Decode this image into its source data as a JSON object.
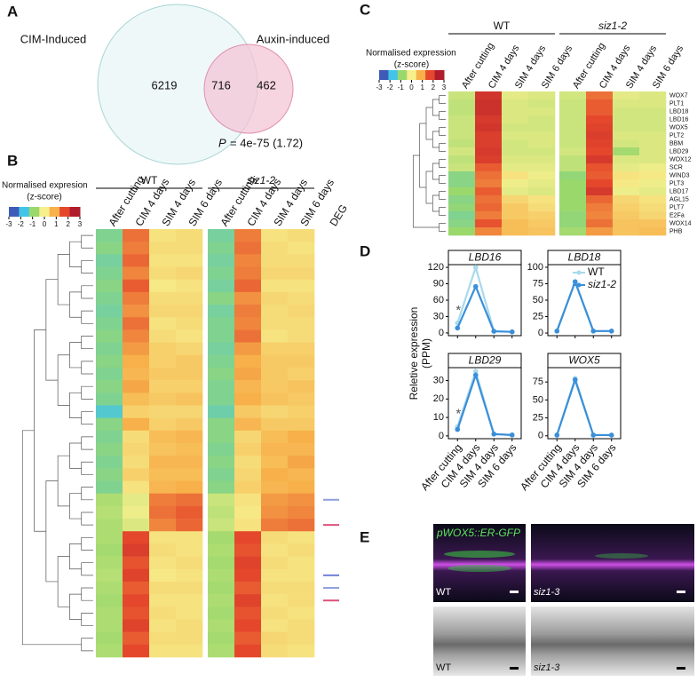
{
  "panel_labels": [
    "A",
    "B",
    "C",
    "D",
    "E"
  ],
  "venn": {
    "left_label": "CIM-Induced",
    "right_label": "Auxin-induced",
    "left_only": 6219,
    "overlap": 716,
    "right_only": 462,
    "p_symbol": "P",
    "p_text": "= 4e-75 (1.72)"
  },
  "colormap": [
    "#3f5bb8",
    "#41c4e8",
    "#9bd86c",
    "#f6ef8c",
    "#f7b04a",
    "#e5472c",
    "#b01c2c"
  ],
  "heatmap_b": {
    "legend_title": "Normalised expresion",
    "legend_subtitle": "(z-score)",
    "legend_ticks": [
      -3,
      -2,
      -1,
      0,
      1,
      2,
      3
    ],
    "groups": [
      "WT",
      "siz1-2"
    ],
    "columns": [
      "After cutting",
      "CIM 4 days",
      "SIM 4 days",
      "SIM 6 days",
      "After cutting",
      "CIM 4 days",
      "SIM 4 days",
      "SIM 6 days"
    ],
    "deg_label": "DEG",
    "rows": [
      [
        -1.3,
        1.6,
        0.2,
        0.3,
        -1.4,
        1.5,
        0.2,
        0.3
      ],
      [
        -1.2,
        1.5,
        0.3,
        0.3,
        -1.3,
        1.6,
        0.3,
        0.2
      ],
      [
        -1.4,
        1.7,
        0.2,
        0.2,
        -1.4,
        1.4,
        0.3,
        0.3
      ],
      [
        -1.3,
        1.4,
        0.3,
        0.4,
        -1.3,
        1.5,
        0.4,
        0.4
      ],
      [
        -1.2,
        1.8,
        0.1,
        0.2,
        -1.4,
        1.7,
        0.2,
        0.2
      ],
      [
        -1.3,
        1.5,
        0.3,
        0.3,
        -1.2,
        1.3,
        0.4,
        0.3
      ],
      [
        -1.4,
        1.3,
        0.4,
        0.4,
        -1.4,
        1.5,
        0.3,
        0.4
      ],
      [
        -1.3,
        1.6,
        0.2,
        0.3,
        -1.3,
        1.4,
        0.3,
        0.3
      ],
      [
        -1.2,
        1.4,
        0.3,
        0.2,
        -1.3,
        1.6,
        0.2,
        0.3
      ],
      [
        -1.3,
        1.2,
        0.5,
        0.4,
        -1.4,
        1.2,
        0.5,
        0.5
      ],
      [
        -1.2,
        1.0,
        0.5,
        0.6,
        -1.3,
        1.0,
        0.6,
        0.6
      ],
      [
        -1.3,
        0.9,
        0.6,
        0.6,
        -1.2,
        1.1,
        0.6,
        0.5
      ],
      [
        -1.2,
        1.1,
        0.5,
        0.5,
        -1.3,
        0.9,
        0.6,
        0.7
      ],
      [
        -1.3,
        0.8,
        0.6,
        0.7,
        -1.3,
        1.0,
        0.7,
        0.6
      ],
      [
        -1.8,
        0.5,
        0.4,
        0.4,
        -1.5,
        0.6,
        0.4,
        0.5
      ],
      [
        -1.2,
        1.0,
        0.5,
        0.6,
        -1.2,
        0.9,
        0.6,
        0.6
      ],
      [
        -1.3,
        0.3,
        0.8,
        0.9,
        -1.2,
        0.4,
        0.8,
        1.0
      ],
      [
        -1.2,
        0.4,
        0.7,
        0.8,
        -1.3,
        0.5,
        0.9,
        0.9
      ],
      [
        -1.3,
        0.3,
        0.9,
        0.9,
        -1.2,
        0.3,
        0.8,
        1.1
      ],
      [
        -1.2,
        0.5,
        0.8,
        0.8,
        -1.3,
        0.4,
        1.0,
        0.9
      ],
      [
        -1.3,
        0.2,
        0.9,
        1.0,
        -1.2,
        0.5,
        0.9,
        1.0
      ],
      [
        -0.8,
        -0.2,
        1.5,
        1.6,
        -0.5,
        0.2,
        1.2,
        1.3
      ],
      [
        -0.7,
        -0.1,
        1.6,
        1.8,
        -0.6,
        0.1,
        1.3,
        1.4
      ],
      [
        -0.8,
        -0.3,
        1.4,
        1.7,
        -0.5,
        0.2,
        1.5,
        1.6
      ],
      [
        -0.8,
        2.0,
        0.2,
        0.2,
        -0.9,
        2.0,
        0.3,
        0.2
      ],
      [
        -0.9,
        2.2,
        0.3,
        0.2,
        -0.8,
        1.9,
        0.2,
        0.3
      ],
      [
        -0.8,
        1.9,
        0.2,
        0.3,
        -0.9,
        2.1,
        0.3,
        0.2
      ],
      [
        -0.7,
        2.1,
        0.1,
        0.2,
        -0.8,
        2.0,
        0.2,
        0.2
      ],
      [
        -0.8,
        1.8,
        0.3,
        0.3,
        -0.9,
        1.8,
        0.3,
        0.3
      ],
      [
        -0.9,
        2.0,
        0.2,
        0.2,
        -0.8,
        2.1,
        0.2,
        0.3
      ],
      [
        -0.8,
        1.9,
        0.3,
        0.2,
        -0.9,
        1.9,
        0.3,
        0.2
      ],
      [
        -0.8,
        2.1,
        0.2,
        0.3,
        -0.8,
        2.0,
        0.2,
        0.3
      ],
      [
        -0.9,
        1.8,
        0.3,
        0.3,
        -0.9,
        1.8,
        0.4,
        0.3
      ],
      [
        -0.8,
        2.0,
        0.2,
        0.2,
        -0.8,
        2.0,
        0.3,
        0.2
      ]
    ],
    "deg_colors": [
      null,
      null,
      null,
      null,
      null,
      null,
      null,
      null,
      null,
      null,
      null,
      null,
      null,
      null,
      null,
      null,
      null,
      null,
      null,
      null,
      null,
      "#8f9fe0",
      null,
      "#e0507a",
      null,
      null,
      null,
      "#7080d8",
      "#8f9fe0",
      "#e0507a",
      null,
      null,
      null,
      null
    ]
  },
  "heatmap_c": {
    "legend_title": "Normalised expression",
    "legend_subtitle": "(z-score)",
    "legend_ticks": [
      -3,
      -2,
      -1,
      0,
      1,
      2,
      3
    ],
    "groups": [
      "WT",
      "siz1-2"
    ],
    "columns": [
      "After cutting",
      "CIM 4 days",
      "SIM 4 days",
      "SIM 6 days",
      "After cutting",
      "CIM 4 days",
      "SIM 4 days",
      "SIM 6 days"
    ],
    "genes": [
      "WOX7",
      "PLT1",
      "LBD18",
      "LBD16",
      "WOX5",
      "PLT2",
      "BBM",
      "LBD29",
      "WOX12",
      "SCR",
      "WIND3",
      "PLT3",
      "LBD17",
      "AGL15",
      "PLT7",
      "E2Fa",
      "WOX14",
      "PHB"
    ],
    "rows": [
      [
        -0.5,
        2.4,
        -0.2,
        -0.3,
        -0.4,
        1.6,
        -0.2,
        -0.3
      ],
      [
        -0.6,
        2.5,
        -0.3,
        -0.4,
        -0.5,
        1.8,
        -0.3,
        -0.3
      ],
      [
        -0.6,
        2.5,
        -0.3,
        -0.3,
        -0.5,
        1.8,
        -0.4,
        -0.4
      ],
      [
        -0.5,
        2.3,
        -0.3,
        -0.4,
        -0.5,
        2.0,
        -0.4,
        -0.4
      ],
      [
        -0.5,
        2.4,
        -0.4,
        -0.4,
        -0.5,
        2.1,
        -0.4,
        -0.4
      ],
      [
        -0.5,
        2.2,
        -0.3,
        -0.3,
        -0.5,
        2.2,
        -0.3,
        -0.3
      ],
      [
        -0.6,
        2.2,
        -0.4,
        -0.3,
        -0.5,
        2.1,
        -0.4,
        -0.3
      ],
      [
        -0.4,
        2.3,
        -0.4,
        -0.4,
        -0.4,
        2.0,
        -0.9,
        -0.3
      ],
      [
        -0.6,
        2.2,
        -0.3,
        -0.3,
        -0.6,
        2.3,
        -0.3,
        -0.3
      ],
      [
        -0.5,
        1.8,
        -0.2,
        -0.2,
        -0.6,
        1.9,
        -0.2,
        -0.1
      ],
      [
        -1.2,
        1.6,
        0.2,
        -0.1,
        -1.1,
        1.8,
        0.2,
        0.1
      ],
      [
        -1.2,
        1.5,
        -0.1,
        -0.2,
        -1.0,
        2.0,
        0.1,
        -0.1
      ],
      [
        -1.0,
        1.8,
        -0.2,
        -0.3,
        -1.0,
        2.3,
        -0.1,
        -0.2
      ],
      [
        -1.2,
        1.6,
        0.4,
        0.2,
        -1.0,
        1.7,
        0.4,
        0.2
      ],
      [
        -1.1,
        1.7,
        0.6,
        0.3,
        -1.0,
        1.5,
        0.5,
        0.3
      ],
      [
        -1.3,
        1.5,
        0.6,
        0.5,
        -1.1,
        1.4,
        0.6,
        0.4
      ],
      [
        -1.2,
        1.9,
        0.8,
        0.6,
        -1.1,
        1.6,
        0.7,
        0.7
      ],
      [
        -1.0,
        1.4,
        0.8,
        0.7,
        -0.9,
        1.2,
        0.7,
        0.8
      ]
    ]
  },
  "line_panels": {
    "y_label": "Reletive expression",
    "y_unit": "(PPM)",
    "categories": [
      "After cutting",
      "CIM 4 days",
      "SIM 4 days",
      "SIM 6 days"
    ],
    "series": [
      {
        "name": "WT",
        "color": "#a9d9ec"
      },
      {
        "name": "siz1-2",
        "color": "#3a8fd9"
      }
    ],
    "charts": [
      {
        "title": "LBD16",
        "ylim": [
          -5,
          125
        ],
        "yticks": [
          0,
          30,
          60,
          90,
          120
        ],
        "annotation": "*",
        "series": [
          {
            "values": [
              18,
              120,
              3,
              2
            ]
          },
          {
            "values": [
              9,
              85,
              3,
              2
            ]
          }
        ]
      },
      {
        "title": "LBD18",
        "ylim": [
          -4,
          104
        ],
        "yticks": [
          0,
          25,
          50,
          75,
          100
        ],
        "series": [
          {
            "values": [
              3,
              78,
              3,
              3
            ]
          },
          {
            "values": [
              3,
              78,
              3,
              3
            ]
          }
        ]
      },
      {
        "title": "LBD29",
        "ylim": [
          -1.5,
          37
        ],
        "yticks": [
          0,
          10,
          20,
          30
        ],
        "annotation": "*",
        "series": [
          {
            "values": [
              5,
              35,
              1,
              0.5
            ]
          },
          {
            "values": [
              3.5,
              33,
              1,
              0.5
            ]
          }
        ]
      },
      {
        "title": "WOX5",
        "ylim": [
          -4,
          95
        ],
        "yticks": [
          0,
          25,
          50,
          75
        ],
        "series": [
          {
            "values": [
              1,
              80,
              1,
              1
            ]
          },
          {
            "values": [
              1,
              78,
              1,
              1
            ]
          }
        ]
      }
    ]
  },
  "images": {
    "reporter": "pWOX5::ER-GFP",
    "labels": [
      "WT",
      "siz1-3",
      "WT",
      "siz1-3"
    ]
  }
}
